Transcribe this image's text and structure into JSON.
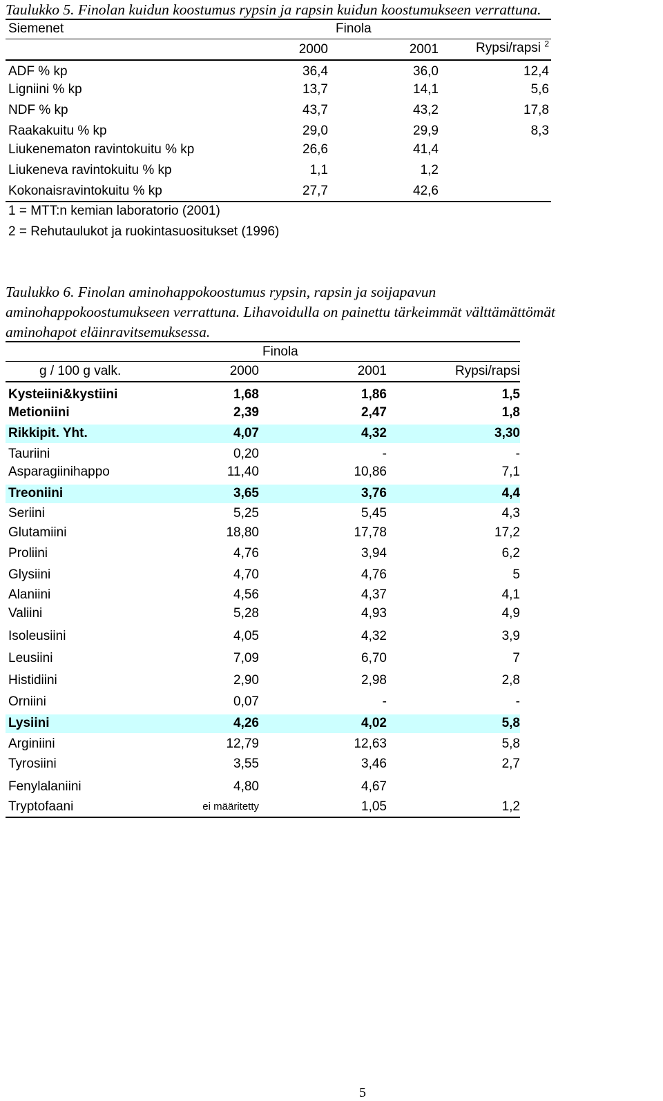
{
  "table5": {
    "caption": "Taulukko 5. Finolan kuidun koostumus rypsin ja rapsin kuidun koostumukseen verrattuna.",
    "header": {
      "seed_label": "Siemenet",
      "group_label": "Finola",
      "col1": "2000",
      "col2": "2001",
      "col3": "Rypsi/rapsi",
      "col3_sup": "2"
    },
    "rows": [
      {
        "label": "ADF % kp",
        "v1": "36,4",
        "v2": "36,0",
        "v3": "12,4"
      },
      {
        "label": "Ligniini % kp",
        "v1": "13,7",
        "v2": "14,1",
        "v3": "5,6"
      },
      {
        "label": "NDF % kp",
        "v1": "43,7",
        "v2": "43,2",
        "v3": "17,8"
      },
      {
        "label": "Raakakuitu % kp",
        "v1": "29,0",
        "v2": "29,9",
        "v3": "8,3"
      },
      {
        "label": "Liukenematon ravintokuitu % kp",
        "v1": "26,6",
        "v2": "41,4",
        "v3": ""
      },
      {
        "label": "Liukeneva ravintokuitu % kp",
        "v1": "1,1",
        "v2": "1,2",
        "v3": ""
      },
      {
        "label": "Kokonaisravintokuitu % kp",
        "v1": "27,7",
        "v2": "42,6",
        "v3": ""
      }
    ],
    "footnotes": [
      "1 = MTT:n kemian laboratorio (2001)",
      "2 = Rehutaulukot ja ruokintasuositukset (1996)"
    ]
  },
  "table6": {
    "caption_lines": [
      "Taulukko 6. Finolan aminohappokoostumus rypsin, rapsin ja soijapavun",
      "aminohappokoostumukseen verrattuna. Lihavoidulla on painettu tärkeimmät välttämättömät",
      "aminohapot eläinravitsemuksessa."
    ],
    "header": {
      "group_label": "Finola",
      "unit_label": "g / 100 g valk.",
      "col1": "2000",
      "col2": "2001",
      "col3": "Rypsi/rapsi"
    },
    "highlight_color": "#ccffff",
    "rows": [
      {
        "label": "Kysteiini&kystiini",
        "v1": "1,68",
        "v2": "1,86",
        "v3": "1,5",
        "bold": true,
        "hl": false
      },
      {
        "label": "Metioniini",
        "v1": "2,39",
        "v2": "2,47",
        "v3": "1,8",
        "bold": true,
        "hl": false
      },
      {
        "label": "Rikkipit. Yht.",
        "v1": "4,07",
        "v2": "4,32",
        "v3": "3,30",
        "bold": true,
        "hl": true
      },
      {
        "label": "Tauriini",
        "v1": "0,20",
        "v2": "-",
        "v3": "-",
        "bold": false,
        "hl": false
      },
      {
        "label": "Asparagiinihappo",
        "v1": "11,40",
        "v2": "10,86",
        "v3": "7,1",
        "bold": false,
        "hl": false
      },
      {
        "label": "Treoniini",
        "v1": "3,65",
        "v2": "3,76",
        "v3": "4,4",
        "bold": true,
        "hl": true
      },
      {
        "label": "Seriini",
        "v1": "5,25",
        "v2": "5,45",
        "v3": "4,3",
        "bold": false,
        "hl": false
      },
      {
        "label": "Glutamiini",
        "v1": "18,80",
        "v2": "17,78",
        "v3": "17,2",
        "bold": false,
        "hl": false
      },
      {
        "label": "Proliini",
        "v1": "4,76",
        "v2": "3,94",
        "v3": "6,2",
        "bold": false,
        "hl": false
      },
      {
        "label": "Glysiini",
        "v1": "4,70",
        "v2": "4,76",
        "v3": "5",
        "bold": false,
        "hl": false
      },
      {
        "label": "Alaniini",
        "v1": "4,56",
        "v2": "4,37",
        "v3": "4,1",
        "bold": false,
        "hl": false
      },
      {
        "label": "Valiini",
        "v1": "5,28",
        "v2": "4,93",
        "v3": "4,9",
        "bold": false,
        "hl": false
      },
      {
        "label": "Isoleusiini",
        "v1": "4,05",
        "v2": "4,32",
        "v3": "3,9",
        "bold": false,
        "hl": false
      },
      {
        "label": "Leusiini",
        "v1": "7,09",
        "v2": "6,70",
        "v3": "7",
        "bold": false,
        "hl": false
      },
      {
        "label": "Histidiini",
        "v1": "2,90",
        "v2": "2,98",
        "v3": "2,8",
        "bold": false,
        "hl": false
      },
      {
        "label": "Orniini",
        "v1": "0,07",
        "v2": "-",
        "v3": "-",
        "bold": false,
        "hl": false
      },
      {
        "label": "Lysiini",
        "v1": "4,26",
        "v2": "4,02",
        "v3": "5,8",
        "bold": true,
        "hl": true
      },
      {
        "label": "Arginiini",
        "v1": "12,79",
        "v2": "12,63",
        "v3": "5,8",
        "bold": false,
        "hl": false
      },
      {
        "label": "Tyrosiini",
        "v1": "3,55",
        "v2": "3,46",
        "v3": "2,7",
        "bold": false,
        "hl": false
      },
      {
        "label": "Fenylalaniini",
        "v1": "4,80",
        "v2": "4,67",
        "v3": "",
        "bold": false,
        "hl": false
      },
      {
        "label": "Tryptofaani",
        "v1": "ei määritetty",
        "v2": "1,05",
        "v3": "1,2",
        "bold": false,
        "hl": false,
        "v1_small": true
      }
    ]
  },
  "page_number": "5"
}
